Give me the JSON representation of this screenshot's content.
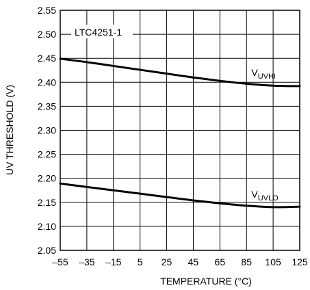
{
  "chart_data": {
    "type": "line",
    "title": "",
    "xlabel": "TEMPERATURE (°C)",
    "ylabel": "UV THRESHOLD (V)",
    "xlim": [
      -55,
      125
    ],
    "ylim": [
      2.05,
      2.55
    ],
    "x_ticks": [
      -55,
      -35,
      -15,
      5,
      25,
      45,
      65,
      85,
      105,
      125
    ],
    "x_tick_labels": [
      "–55",
      "–35",
      "–15",
      "5",
      "25",
      "45",
      "65",
      "85",
      "105",
      "125"
    ],
    "y_ticks": [
      2.05,
      2.1,
      2.15,
      2.2,
      2.25,
      2.3,
      2.35,
      2.4,
      2.45,
      2.5,
      2.55
    ],
    "y_tick_labels": [
      "2.05",
      "2.10",
      "2.15",
      "2.20",
      "2.25",
      "2.30",
      "2.35",
      "2.40",
      "2.45",
      "2.50",
      "2.55"
    ],
    "grid": true,
    "annotation": "LTC4251-1",
    "series": [
      {
        "name": "VUVHI",
        "label_main": "V",
        "label_sub": "UVHI",
        "x": [
          -55,
          -35,
          -15,
          5,
          25,
          45,
          65,
          85,
          105,
          125
        ],
        "values": [
          2.449,
          2.442,
          2.434,
          2.426,
          2.418,
          2.41,
          2.403,
          2.397,
          2.393,
          2.392
        ]
      },
      {
        "name": "VUVLO",
        "label_main": "V",
        "label_sub": "UVLO",
        "x": [
          -55,
          -35,
          -15,
          5,
          25,
          45,
          65,
          85,
          105,
          125
        ],
        "values": [
          2.189,
          2.182,
          2.175,
          2.168,
          2.161,
          2.154,
          2.148,
          2.143,
          2.14,
          2.141
        ]
      }
    ]
  }
}
